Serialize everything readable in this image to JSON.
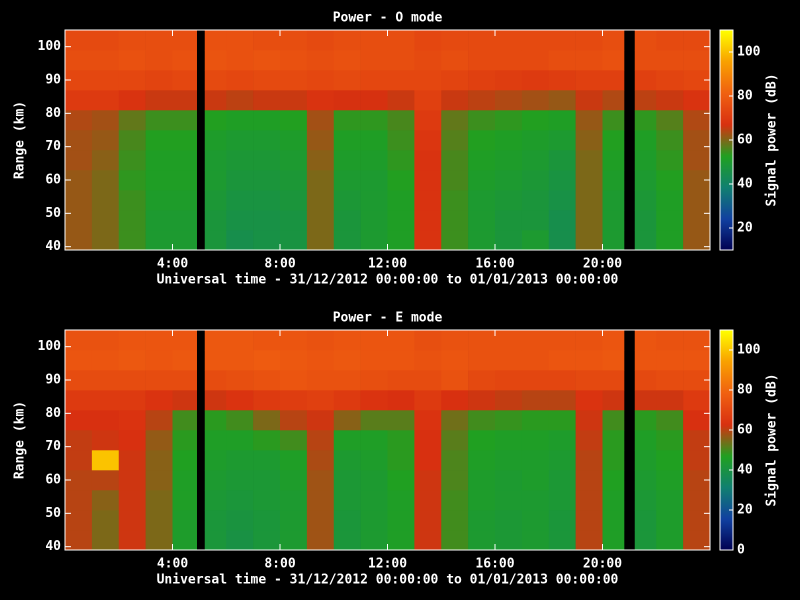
{
  "chart_data": [
    {
      "type": "heatmap",
      "title": "Power - O mode",
      "xlabel": "Universal time - 31/12/2012 00:00:00 to 01/01/2013 00:00:00",
      "ylabel": "Range (km)",
      "colorbar_label": "Signal power (dB)",
      "xlim": [
        0,
        24
      ],
      "ylim": [
        39,
        105
      ],
      "xticks": [
        {
          "value": 4,
          "label": "4:00"
        },
        {
          "value": 8,
          "label": "8:00"
        },
        {
          "value": 12,
          "label": "12:00"
        },
        {
          "value": 16,
          "label": "16:00"
        },
        {
          "value": 20,
          "label": "20:00"
        }
      ],
      "yticks": [
        40,
        50,
        60,
        70,
        80,
        90,
        100
      ],
      "zlim": [
        10,
        110
      ],
      "zticks": [
        20,
        40,
        60,
        80,
        100
      ],
      "colorscale": [
        "#000050",
        "#1040a0",
        "#108070",
        "#20a020",
        "#d83010",
        "#f06010",
        "#f8a000",
        "#ffff00"
      ],
      "xbins": [
        0,
        1,
        2,
        3,
        4,
        4.9,
        5.2,
        6,
        7,
        8,
        9,
        10,
        11,
        12,
        13,
        14,
        15,
        16,
        17,
        18,
        19,
        20,
        20.8,
        21.2,
        22,
        23,
        24
      ],
      "ybins": [
        39,
        45,
        51,
        57,
        63,
        69,
        75,
        81,
        87,
        93,
        99,
        105
      ],
      "values": [
        [
          62,
          60,
          55,
          50,
          50,
          null,
          48,
          45,
          46,
          47,
          60,
          48,
          50,
          52,
          68,
          55,
          50,
          48,
          50,
          45,
          60,
          50,
          null,
          48,
          52,
          62
        ],
        [
          62,
          60,
          55,
          50,
          50,
          null,
          48,
          46,
          46,
          47,
          60,
          48,
          50,
          52,
          68,
          55,
          50,
          48,
          48,
          45,
          60,
          50,
          null,
          48,
          52,
          62
        ],
        [
          62,
          60,
          55,
          51,
          51,
          null,
          49,
          47,
          47,
          48,
          60,
          49,
          50,
          52,
          68,
          55,
          50,
          49,
          48,
          46,
          60,
          50,
          null,
          49,
          52,
          62
        ],
        [
          62,
          60,
          54,
          52,
          52,
          null,
          50,
          48,
          48,
          49,
          60,
          50,
          50,
          53,
          68,
          56,
          51,
          50,
          49,
          47,
          60,
          51,
          null,
          50,
          53,
          62
        ],
        [
          63,
          61,
          55,
          52,
          52,
          null,
          50,
          49,
          49,
          50,
          61,
          51,
          51,
          54,
          68,
          56,
          52,
          51,
          50,
          48,
          60,
          52,
          null,
          51,
          54,
          63
        ],
        [
          63,
          62,
          56,
          53,
          53,
          null,
          51,
          50,
          50,
          51,
          62,
          52,
          52,
          55,
          69,
          57,
          53,
          52,
          51,
          50,
          61,
          53,
          null,
          52,
          55,
          63
        ],
        [
          64,
          63,
          58,
          55,
          55,
          null,
          53,
          52,
          52,
          53,
          63,
          54,
          54,
          56,
          70,
          58,
          55,
          54,
          53,
          52,
          62,
          55,
          null,
          54,
          57,
          64
        ],
        [
          70,
          70,
          68,
          66,
          66,
          null,
          66,
          65,
          66,
          66,
          68,
          67,
          67,
          66,
          72,
          66,
          65,
          64,
          63,
          62,
          66,
          64,
          null,
          65,
          66,
          68
        ],
        [
          74,
          74,
          74,
          73,
          74,
          null,
          75,
          74,
          75,
          75,
          74,
          75,
          74,
          74,
          74,
          73,
          72,
          71,
          70,
          71,
          72,
          72,
          null,
          72,
          73,
          74
        ],
        [
          76,
          76,
          77,
          76,
          77,
          null,
          78,
          77,
          78,
          77,
          76,
          77,
          76,
          76,
          75,
          76,
          75,
          75,
          75,
          76,
          76,
          77,
          null,
          76,
          76,
          76
        ],
        [
          75,
          75,
          76,
          76,
          76,
          null,
          77,
          77,
          76,
          76,
          75,
          76,
          76,
          76,
          74,
          75,
          75,
          75,
          75,
          75,
          75,
          76,
          null,
          76,
          75,
          75
        ]
      ]
    },
    {
      "type": "heatmap",
      "title": "Power - E mode",
      "xlabel": "Universal time - 31/12/2012 00:00:00 to 01/01/2013 00:00:00",
      "ylabel": "Range (km)",
      "colorbar_label": "Signal power (dB)",
      "xlim": [
        0,
        24
      ],
      "ylim": [
        39,
        105
      ],
      "xticks": [
        {
          "value": 4,
          "label": "4:00"
        },
        {
          "value": 8,
          "label": "8:00"
        },
        {
          "value": 12,
          "label": "12:00"
        },
        {
          "value": 16,
          "label": "16:00"
        },
        {
          "value": 20,
          "label": "20:00"
        }
      ],
      "yticks": [
        40,
        50,
        60,
        70,
        80,
        90,
        100
      ],
      "zlim": [
        0,
        110
      ],
      "zticks": [
        0,
        20,
        40,
        60,
        80,
        100
      ],
      "colorscale": [
        "#000050",
        "#1040a0",
        "#108070",
        "#20a020",
        "#d83010",
        "#f06010",
        "#f8a000",
        "#ffff00"
      ],
      "xbins": [
        0,
        1,
        2,
        3,
        4,
        4.9,
        5.2,
        6,
        7,
        8,
        9,
        10,
        11,
        12,
        13,
        14,
        15,
        16,
        17,
        18,
        19,
        20,
        20.8,
        21.2,
        22,
        23,
        24
      ],
      "ybins": [
        39,
        45,
        51,
        57,
        63,
        69,
        75,
        81,
        87,
        93,
        99,
        105
      ],
      "values": [
        [
          60,
          55,
          62,
          55,
          45,
          null,
          42,
          40,
          42,
          44,
          58,
          42,
          44,
          46,
          62,
          50,
          44,
          43,
          44,
          42,
          60,
          46,
          null,
          42,
          45,
          60
        ],
        [
          60,
          55,
          62,
          55,
          45,
          null,
          42,
          41,
          42,
          44,
          58,
          42,
          44,
          46,
          62,
          50,
          44,
          43,
          44,
          42,
          60,
          46,
          null,
          42,
          45,
          60
        ],
        [
          60,
          56,
          62,
          55,
          46,
          null,
          43,
          42,
          43,
          44,
          58,
          43,
          44,
          46,
          62,
          50,
          45,
          44,
          44,
          43,
          60,
          46,
          null,
          43,
          45,
          60
        ],
        [
          60,
          60,
          62,
          56,
          46,
          null,
          44,
          43,
          43,
          45,
          58,
          43,
          44,
          47,
          62,
          51,
          45,
          44,
          45,
          43,
          60,
          47,
          null,
          44,
          46,
          60
        ],
        [
          61,
          100,
          62,
          56,
          47,
          null,
          45,
          44,
          44,
          46,
          59,
          44,
          45,
          48,
          63,
          51,
          46,
          45,
          45,
          44,
          60,
          48,
          null,
          45,
          47,
          61
        ],
        [
          61,
          62,
          63,
          57,
          48,
          null,
          46,
          46,
          48,
          50,
          60,
          46,
          46,
          48,
          63,
          52,
          47,
          46,
          46,
          45,
          61,
          48,
          null,
          46,
          48,
          61
        ],
        [
          63,
          63,
          64,
          60,
          50,
          null,
          48,
          50,
          55,
          60,
          62,
          56,
          52,
          52,
          64,
          54,
          50,
          49,
          48,
          48,
          62,
          50,
          null,
          48,
          50,
          63
        ],
        [
          66,
          66,
          66,
          64,
          62,
          null,
          62,
          64,
          66,
          67,
          68,
          66,
          64,
          63,
          66,
          63,
          62,
          61,
          60,
          60,
          64,
          62,
          null,
          62,
          62,
          66
        ],
        [
          72,
          72,
          72,
          72,
          72,
          null,
          72,
          73,
          74,
          75,
          74,
          74,
          73,
          72,
          72,
          74,
          71,
          70,
          70,
          70,
          71,
          71,
          null,
          71,
          72,
          72
        ],
        [
          75,
          75,
          76,
          75,
          76,
          null,
          76,
          76,
          77,
          76,
          75,
          76,
          75,
          75,
          74,
          75,
          74,
          74,
          74,
          75,
          75,
          76,
          null,
          75,
          75,
          75
        ],
        [
          74,
          74,
          75,
          75,
          75,
          null,
          76,
          76,
          75,
          75,
          74,
          75,
          75,
          75,
          73,
          74,
          74,
          74,
          74,
          74,
          74,
          75,
          null,
          75,
          74,
          74
        ]
      ]
    }
  ]
}
